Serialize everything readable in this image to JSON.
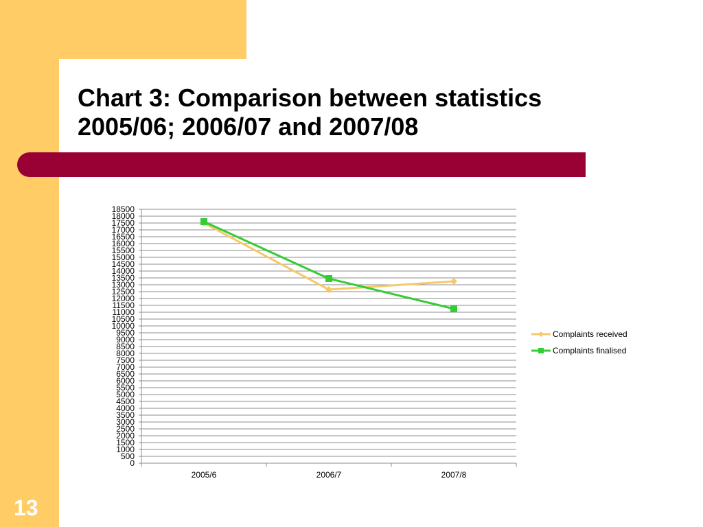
{
  "slide": {
    "title_line1": "Chart 3: Comparison between statistics",
    "title_line2": "2005/06; 2006/07 and 2007/08",
    "page_number": "13",
    "colors": {
      "accent_yellow": "#ffcc66",
      "accent_red": "#990033"
    }
  },
  "chart_data": {
    "type": "line",
    "categories": [
      "2005/6",
      "2006/7",
      "2007/8"
    ],
    "series": [
      {
        "name": "Complaints received",
        "values": [
          17500,
          12650,
          13250
        ],
        "color": "#f5c96a",
        "marker": "diamond"
      },
      {
        "name": "Complaints finalised",
        "values": [
          17600,
          13450,
          11250
        ],
        "color": "#33cc33",
        "marker": "square"
      }
    ],
    "ylim": [
      0,
      18500
    ],
    "ytick_step": 500,
    "grid": true,
    "legend": "right"
  }
}
